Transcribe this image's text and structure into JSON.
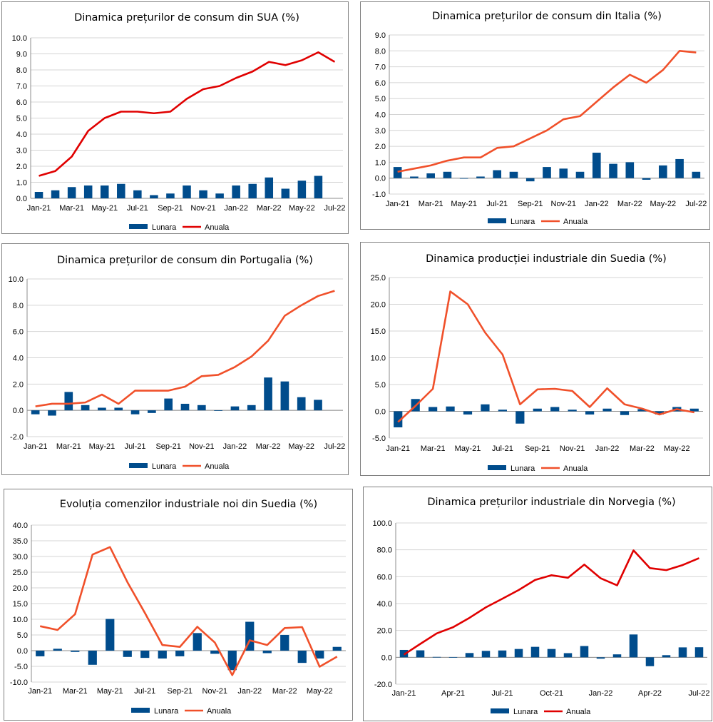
{
  "chart_data": [
    {
      "type": "bar+line",
      "title": "Dinamica prețurilor de consum din SUA (%)",
      "categories": [
        "Jan-21",
        "Feb-21",
        "Mar-21",
        "Apr-21",
        "May-21",
        "Jun-21",
        "Jul-21",
        "Aug-21",
        "Sep-21",
        "Oct-21",
        "Nov-21",
        "Dec-21",
        "Jan-22",
        "Feb-22",
        "Mar-22",
        "Apr-22",
        "May-22",
        "Jun-22",
        "Jul-22"
      ],
      "x_tick_labels": [
        "Jan-21",
        "Mar-21",
        "May-21",
        "Jul-21",
        "Sep-21",
        "Nov-21",
        "Jan-22",
        "Mar-22",
        "May-22",
        "Jul-22"
      ],
      "ylim": [
        0,
        10
      ],
      "y_step": 1,
      "y_decimals": 1,
      "series": [
        {
          "name": "Lunara",
          "type": "bar",
          "color": "#004c8c",
          "values": [
            0.4,
            0.5,
            0.7,
            0.8,
            0.8,
            0.9,
            0.5,
            0.2,
            0.3,
            0.8,
            0.5,
            0.3,
            0.8,
            0.9,
            1.3,
            0.6,
            1.1,
            1.4,
            null
          ]
        },
        {
          "name": "Anuala",
          "type": "line",
          "color": "#e00000",
          "values": [
            1.4,
            1.7,
            2.6,
            4.2,
            5.0,
            5.4,
            5.4,
            5.3,
            5.4,
            6.2,
            6.8,
            7.0,
            7.5,
            7.9,
            8.5,
            8.3,
            8.6,
            9.1,
            8.5
          ]
        }
      ],
      "legend": "bottom"
    },
    {
      "type": "bar+line",
      "title": "Dinamica prețurilor de consum din Italia (%)",
      "categories": [
        "Jan-21",
        "Feb-21",
        "Mar-21",
        "Apr-21",
        "May-21",
        "Jun-21",
        "Jul-21",
        "Aug-21",
        "Sep-21",
        "Oct-21",
        "Nov-21",
        "Dec-21",
        "Jan-22",
        "Feb-22",
        "Mar-22",
        "Apr-22",
        "May-22",
        "Jun-22",
        "Jul-22"
      ],
      "x_tick_labels": [
        "Jan-21",
        "Mar-21",
        "May-21",
        "Jul-21",
        "Sep-21",
        "Nov-21",
        "Jan-22",
        "Mar-22",
        "May-22",
        "Jul-22"
      ],
      "ylim": [
        -1,
        9
      ],
      "y_step": 1,
      "y_decimals": 1,
      "series": [
        {
          "name": "Lunara",
          "type": "bar",
          "color": "#004c8c",
          "values": [
            0.7,
            0.1,
            0.3,
            0.4,
            0.0,
            0.1,
            0.5,
            0.4,
            -0.2,
            0.7,
            0.6,
            0.4,
            1.6,
            0.9,
            1.0,
            -0.1,
            0.8,
            1.2,
            0.4
          ]
        },
        {
          "name": "Anuala",
          "type": "line",
          "color": "#f0502a",
          "values": [
            0.4,
            0.6,
            0.8,
            1.1,
            1.3,
            1.3,
            1.9,
            2.0,
            2.5,
            3.0,
            3.7,
            3.9,
            4.8,
            5.7,
            6.5,
            6.0,
            6.8,
            8.0,
            7.9
          ]
        }
      ],
      "legend": "bottom"
    },
    {
      "type": "bar+line",
      "title": "Dinamica prețurilor de consum din Portugalia (%)",
      "categories": [
        "Jan-21",
        "Feb-21",
        "Mar-21",
        "Apr-21",
        "May-21",
        "Jun-21",
        "Jul-21",
        "Aug-21",
        "Sep-21",
        "Oct-21",
        "Nov-21",
        "Dec-21",
        "Jan-22",
        "Feb-22",
        "Mar-22",
        "Apr-22",
        "May-22",
        "Jun-22",
        "Jul-22"
      ],
      "x_tick_labels": [
        "Jan-21",
        "Mar-21",
        "May-21",
        "Jul-21",
        "Sep-21",
        "Nov-21",
        "Jan-22",
        "Mar-22",
        "May-22",
        "Jul-22"
      ],
      "ylim": [
        -2,
        10
      ],
      "y_step": 2,
      "y_decimals": 1,
      "series": [
        {
          "name": "Lunara",
          "type": "bar",
          "color": "#004c8c",
          "values": [
            -0.3,
            -0.4,
            1.4,
            0.4,
            0.2,
            0.2,
            -0.3,
            -0.2,
            0.9,
            0.5,
            0.4,
            0.0,
            0.3,
            0.4,
            2.5,
            2.2,
            1.0,
            0.8,
            null
          ]
        },
        {
          "name": "Anuala",
          "type": "line",
          "color": "#f0502a",
          "values": [
            0.3,
            0.5,
            0.5,
            0.6,
            1.2,
            0.5,
            1.5,
            1.5,
            1.5,
            1.8,
            2.6,
            2.7,
            3.3,
            4.1,
            5.3,
            7.2,
            8.0,
            8.7,
            9.1
          ]
        }
      ],
      "legend": "bottom"
    },
    {
      "type": "bar+line",
      "title": "Dinamica producției industriale din Suedia (%)",
      "categories": [
        "Jan-21",
        "Feb-21",
        "Mar-21",
        "Apr-21",
        "May-21",
        "Jun-21",
        "Jul-21",
        "Aug-21",
        "Sep-21",
        "Oct-21",
        "Nov-21",
        "Dec-21",
        "Jan-22",
        "Feb-22",
        "Mar-22",
        "Apr-22",
        "May-22",
        "Jun-22"
      ],
      "x_tick_labels": [
        "Jan-21",
        "Mar-21",
        "May-21",
        "Jul-21",
        "Sep-21",
        "Nov-21",
        "Jan-22",
        "Mar-22",
        "May-22"
      ],
      "ylim": [
        -5,
        25
      ],
      "y_step": 5,
      "y_decimals": 1,
      "series": [
        {
          "name": "Lunara",
          "type": "bar",
          "color": "#004c8c",
          "values": [
            -3.0,
            2.3,
            0.8,
            0.9,
            -0.6,
            1.3,
            0.3,
            -2.3,
            0.5,
            0.8,
            0.3,
            -0.6,
            0.5,
            -0.7,
            0.4,
            -0.6,
            0.8,
            0.5
          ]
        },
        {
          "name": "Anuala",
          "type": "line",
          "color": "#f0502a",
          "values": [
            -2.0,
            1.0,
            4.2,
            22.4,
            20.0,
            14.7,
            10.6,
            1.3,
            4.1,
            4.2,
            3.8,
            0.8,
            4.3,
            1.3,
            0.5,
            -0.6,
            0.4,
            -0.2
          ]
        }
      ],
      "legend": "bottom"
    },
    {
      "type": "bar+line",
      "title": "Evoluția comenzilor industriale noi din Suedia (%)",
      "categories": [
        "Jan-21",
        "Feb-21",
        "Mar-21",
        "Apr-21",
        "May-21",
        "Jun-21",
        "Jul-21",
        "Aug-21",
        "Sep-21",
        "Oct-21",
        "Nov-21",
        "Dec-21",
        "Jan-22",
        "Feb-22",
        "Mar-22",
        "Apr-22",
        "May-22",
        "Jun-22"
      ],
      "x_tick_labels": [
        "Jan-21",
        "Mar-21",
        "May-21",
        "Jul-21",
        "Sep-21",
        "Nov-21",
        "Jan-22",
        "Mar-22",
        "May-22"
      ],
      "ylim": [
        -10,
        40
      ],
      "y_step": 5,
      "y_decimals": 1,
      "series": [
        {
          "name": "Lunara",
          "type": "bar",
          "color": "#004c8c",
          "values": [
            -1.8,
            0.6,
            -0.4,
            -4.5,
            10.1,
            -2.0,
            -2.3,
            -2.5,
            -1.8,
            5.6,
            -1.0,
            -6.2,
            9.2,
            -0.8,
            5.0,
            -3.9,
            -2.5,
            1.2
          ]
        },
        {
          "name": "Anuala",
          "type": "line",
          "color": "#f0502a",
          "values": [
            7.8,
            6.6,
            11.6,
            30.6,
            33.0,
            21.8,
            12.0,
            1.8,
            1.2,
            7.6,
            2.6,
            -7.8,
            3.3,
            1.8,
            7.2,
            7.5,
            -5.1,
            -1.9
          ]
        }
      ],
      "legend": "bottom"
    },
    {
      "type": "bar+line",
      "title": "Dinamica prețurilor industriale din Norvegia (%)",
      "categories": [
        "Jan-21",
        "Feb-21",
        "Mar-21",
        "Apr-21",
        "May-21",
        "Jun-21",
        "Jul-21",
        "Aug-21",
        "Sep-21",
        "Oct-21",
        "Nov-21",
        "Dec-21",
        "Jan-22",
        "Feb-22",
        "Mar-22",
        "Apr-22",
        "May-22",
        "Jun-22",
        "Jul-22"
      ],
      "x_tick_labels": [
        "Jan-21",
        "Apr-21",
        "Jul-21",
        "Oct-21",
        "Jan-22",
        "Apr-22",
        "Jul-22"
      ],
      "x_tick_every": 3,
      "ylim": [
        -20,
        100
      ],
      "y_step": 20,
      "y_decimals": 1,
      "series": [
        {
          "name": "Lunara",
          "type": "bar",
          "color": "#004c8c",
          "values": [
            5.5,
            5.2,
            0.3,
            0.2,
            3.2,
            4.8,
            5.1,
            6.2,
            7.8,
            6.2,
            3.1,
            8.4,
            -1.0,
            2.2,
            17.0,
            -6.6,
            1.6,
            7.4,
            7.5
          ]
        },
        {
          "name": "Anuala",
          "type": "line",
          "color": "#e00000",
          "values": [
            2.0,
            10.0,
            17.8,
            22.4,
            29.4,
            37.2,
            43.6,
            50.1,
            57.6,
            61.1,
            59.2,
            69.0,
            58.8,
            53.6,
            79.6,
            66.4,
            64.9,
            68.7,
            73.8
          ]
        }
      ],
      "legend": "bottom"
    }
  ]
}
